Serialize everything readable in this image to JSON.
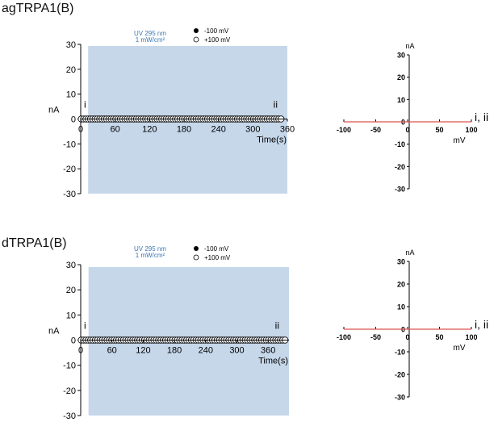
{
  "panels": [
    {
      "title": "agTRPA1(B)",
      "time_course": {
        "type": "scatter",
        "ylabel": "nA",
        "xlabel": "Time(s)",
        "yticks": [
          30,
          20,
          10,
          0,
          -10,
          -20,
          -30
        ],
        "xticks": [
          0,
          60,
          120,
          180,
          240,
          300,
          360
        ],
        "ylim": [
          -30,
          30
        ],
        "xlim": [
          0,
          360
        ],
        "stimulus": {
          "line1": "UV 295 nm",
          "line2": "1 mW/cm²",
          "x_range": [
            13,
            360
          ],
          "color": "#c6d7ea"
        },
        "legend": [
          "-100 mV",
          "+100 mV"
        ],
        "markers": [
          "i",
          "ii"
        ],
        "series": [
          {
            "name": "-100 mV",
            "style": "filled",
            "t_start": 1,
            "t_end": 350,
            "step": 4,
            "value": 0
          },
          {
            "name": "+100 mV",
            "style": "open",
            "t_start": 1,
            "t_end": 350,
            "step": 4,
            "value": 0
          }
        ]
      },
      "iv": {
        "type": "line",
        "ylabel": "nA",
        "xlabel": "mV",
        "xticks": [
          -100,
          -50,
          0,
          50,
          100
        ],
        "yticks": [
          30,
          20,
          10,
          0,
          -10,
          -20,
          -30
        ],
        "xlim": [
          -100,
          100
        ],
        "ylim": [
          -30,
          30
        ],
        "curve_label": "i, ii",
        "curve": {
          "x": [
            -100,
            100
          ],
          "y": [
            0,
            0
          ],
          "color": "#d9534f"
        }
      }
    },
    {
      "title": "dTRPA1(B)",
      "time_course": {
        "type": "scatter",
        "ylabel": "nA",
        "xlabel": "Time(s)",
        "yticks": [
          30,
          20,
          10,
          0,
          -10,
          -20,
          -30
        ],
        "xticks": [
          0,
          60,
          120,
          180,
          240,
          300,
          360
        ],
        "ylim": [
          -30,
          30
        ],
        "xlim": [
          0,
          400
        ],
        "stimulus": {
          "line1": "UV 295 nm",
          "line2": "1 mW/cm²",
          "x_range": [
            15,
            400
          ],
          "color": "#c6d7ea"
        },
        "legend": [
          "-100 mV",
          "+100 mV"
        ],
        "markers": [
          "i",
          "ii"
        ],
        "series": [
          {
            "name": "-100 mV",
            "style": "filled",
            "t_start": 1,
            "t_end": 394,
            "step": 4.5,
            "value": 0
          },
          {
            "name": "+100 mV",
            "style": "open",
            "t_start": 1,
            "t_end": 394,
            "step": 4.5,
            "value": 0
          }
        ]
      },
      "iv": {
        "type": "line",
        "ylabel": "nA",
        "xlabel": "mV",
        "xticks": [
          -100,
          -50,
          0,
          50,
          100
        ],
        "yticks": [
          30,
          20,
          10,
          0,
          -10,
          -20,
          -30
        ],
        "xlim": [
          -100,
          100
        ],
        "ylim": [
          -30,
          30
        ],
        "curve_label": "i, ii",
        "curve": {
          "x": [
            -100,
            100
          ],
          "y": [
            0,
            0
          ],
          "color": "#d9534f"
        }
      }
    }
  ]
}
